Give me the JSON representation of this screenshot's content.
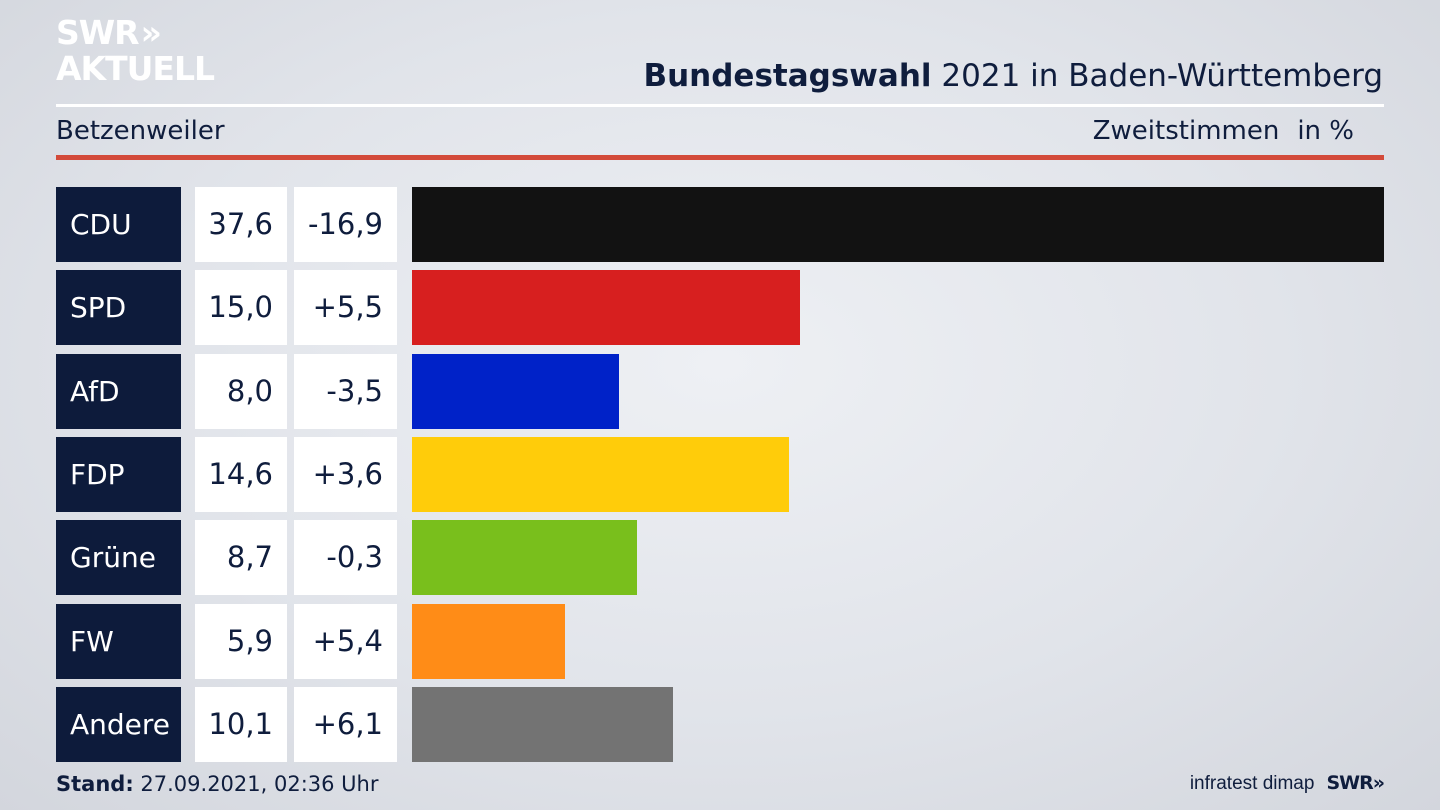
{
  "logo": {
    "line1": "SWR",
    "arrows": "»",
    "line2": "AKTUELL"
  },
  "header": {
    "title_bold": "Bundestagswahl",
    "title_rest": " 2021 in Baden-Württemberg"
  },
  "subheader": {
    "location": "Betzenweiler",
    "measure": "Zweitstimmen",
    "unit": "in %"
  },
  "footer": {
    "stand_label": "Stand:",
    "stand_value": " 27.09.2021, 02:36 Uhr",
    "source": "infratest dimap",
    "brand": "SWR»"
  },
  "chart_data": {
    "type": "bar",
    "orientation": "horizontal",
    "categories": [
      "CDU",
      "SPD",
      "AfD",
      "FDP",
      "Grüne",
      "FW",
      "Andere"
    ],
    "values": [
      37.6,
      15.0,
      8.0,
      14.6,
      8.7,
      5.9,
      10.1
    ],
    "value_labels": [
      "37,6",
      "15,0",
      "8,0",
      "14,6",
      "8,7",
      "5,9",
      "10,1"
    ],
    "diff_labels": [
      "-16,9",
      "+5,5",
      "-3,5",
      "+3,6",
      "-0,3",
      "+5,4",
      "+6,1"
    ],
    "colors": [
      "#121212",
      "#d71f1f",
      "#0022c8",
      "#ffcc0a",
      "#79bf1c",
      "#ff8c17",
      "#737373"
    ],
    "xlim": [
      0,
      37.6
    ]
  }
}
